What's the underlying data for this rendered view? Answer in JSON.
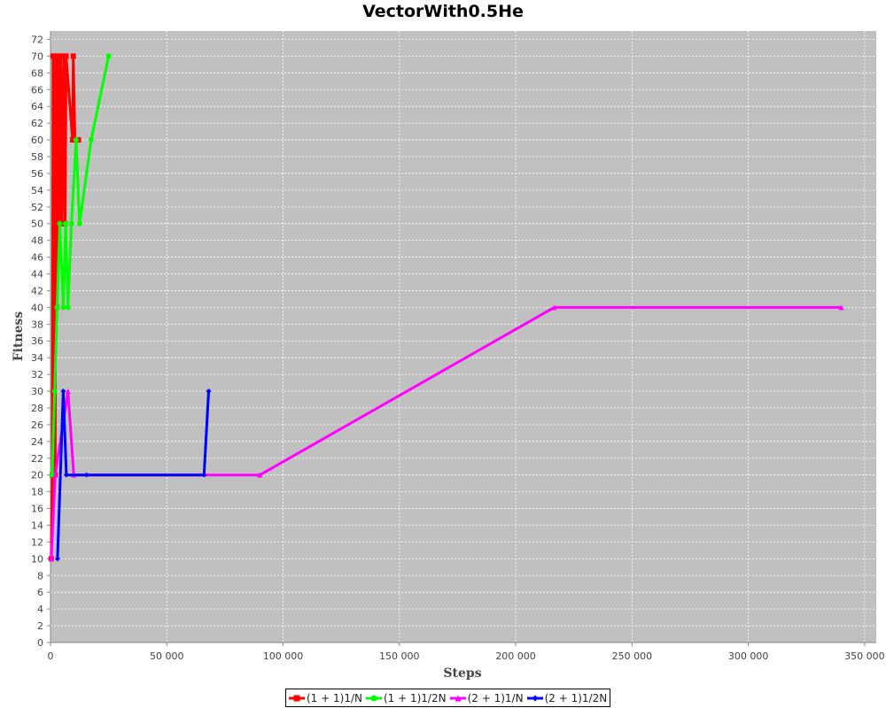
{
  "chart_data": {
    "type": "line",
    "title": "VectorWith0.5He",
    "xlabel": "Steps",
    "ylabel": "Fitness",
    "xlim": [
      0,
      355000
    ],
    "ylim": [
      0,
      73
    ],
    "x_ticks": [
      0,
      50000,
      100000,
      150000,
      200000,
      250000,
      300000,
      350000
    ],
    "x_tick_labels": [
      "0",
      "50 000",
      "100 000",
      "150 000",
      "200 000",
      "250 000",
      "300 000",
      "350 000"
    ],
    "y_ticks": [
      0,
      2,
      4,
      6,
      8,
      10,
      12,
      14,
      16,
      18,
      20,
      22,
      24,
      26,
      28,
      30,
      32,
      34,
      36,
      38,
      40,
      42,
      44,
      46,
      48,
      50,
      52,
      54,
      56,
      58,
      60,
      62,
      64,
      66,
      68,
      70,
      72
    ],
    "grid": true,
    "plot_background": "#c0c0c0",
    "legend_position": "bottom",
    "series": [
      {
        "name": "(1 + 1)1/N",
        "color": "#ff0000",
        "marker": "square",
        "points": [
          [
            300,
            10
          ],
          [
            800,
            20
          ],
          [
            1100,
            70
          ],
          [
            1400,
            30
          ],
          [
            1700,
            60
          ],
          [
            2000,
            20
          ],
          [
            2300,
            70
          ],
          [
            2600,
            40
          ],
          [
            3000,
            50
          ],
          [
            3400,
            70
          ],
          [
            3800,
            50
          ],
          [
            4200,
            60
          ],
          [
            4600,
            70
          ],
          [
            5000,
            50
          ],
          [
            5500,
            60
          ],
          [
            5900,
            70
          ],
          [
            6300,
            50
          ],
          [
            6700,
            70
          ],
          [
            9500,
            60
          ],
          [
            9800,
            70
          ],
          [
            10500,
            60
          ],
          [
            12000,
            60
          ]
        ]
      },
      {
        "name": "(1 + 1)1/2N",
        "color": "#00ff00",
        "marker": "circle",
        "points": [
          [
            700,
            20
          ],
          [
            1800,
            30
          ],
          [
            2800,
            40
          ],
          [
            4000,
            50
          ],
          [
            5500,
            40
          ],
          [
            6500,
            50
          ],
          [
            7500,
            40
          ],
          [
            9000,
            50
          ],
          [
            11000,
            60
          ],
          [
            12500,
            50
          ],
          [
            17500,
            60
          ],
          [
            25000,
            70
          ]
        ]
      },
      {
        "name": "(2 + 1)1/N",
        "color": "#ff00ff",
        "marker": "triangle",
        "points": [
          [
            300,
            10
          ],
          [
            2000,
            20
          ],
          [
            7500,
            30
          ],
          [
            10000,
            20
          ],
          [
            90000,
            20
          ],
          [
            216500,
            40
          ],
          [
            340000,
            40
          ]
        ]
      },
      {
        "name": "(2 + 1)1/2N",
        "color": "#0000ff",
        "marker": "diamond",
        "points": [
          [
            3000,
            10
          ],
          [
            5500,
            30
          ],
          [
            6800,
            20
          ],
          [
            15500,
            20
          ],
          [
            66000,
            20
          ],
          [
            68000,
            30
          ]
        ]
      }
    ]
  }
}
